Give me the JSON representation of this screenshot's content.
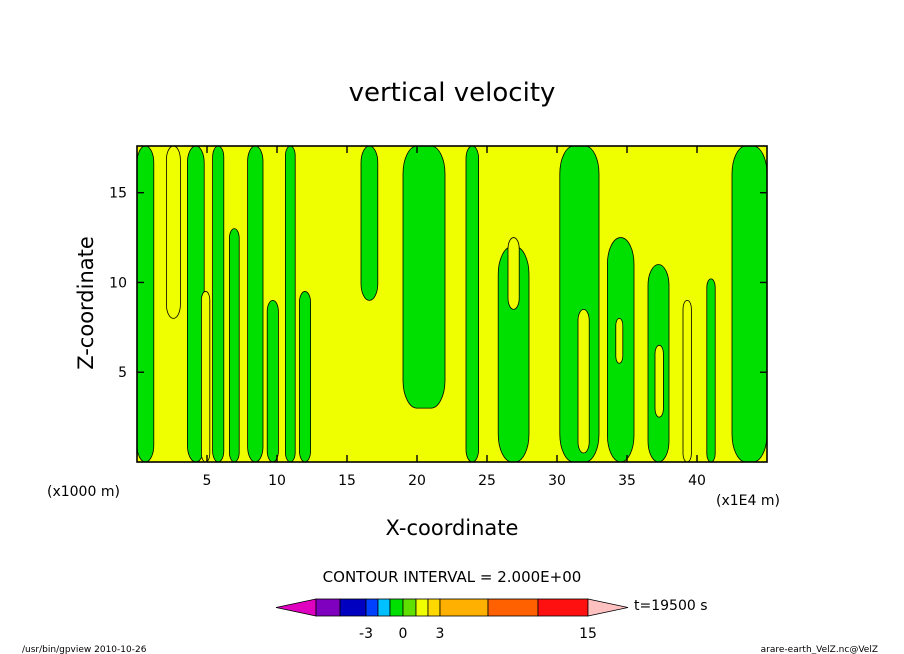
{
  "chart_data": {
    "type": "heatmap",
    "title": "vertical velocity",
    "xlabel": "X-coordinate",
    "ylabel": "Z-coordinate",
    "x_units_left": "(x1000 m)",
    "x_units_right": "(x1E4 m)",
    "xlim": [
      0,
      45
    ],
    "ylim": [
      0,
      17.6
    ],
    "x_ticks": [
      5,
      10,
      15,
      20,
      25,
      30,
      35,
      40
    ],
    "y_ticks": [
      5,
      10,
      15
    ],
    "note": "CONTOUR INTERVAL = 2.000E+00",
    "time_label": "t=19500 s",
    "colors": {
      "positive": "#f0ff00",
      "negative": "#00e000",
      "contour": "#000000"
    },
    "colorbar": {
      "boundaries": [
        -9,
        -7,
        -5,
        -3,
        -2,
        -1,
        0,
        1,
        2,
        3,
        5,
        10,
        15
      ],
      "colors": [
        "#e000c0",
        "#8000c0",
        "#0000c0",
        "#0040ff",
        "#00c0ff",
        "#00e000",
        "#60e000",
        "#f0ff00",
        "#ffd800",
        "#ffb000",
        "#ff6000",
        "#ff1010",
        "#ff7070",
        "#ffc0c0"
      ],
      "tick_labels": [
        "-3",
        "0",
        "3",
        "15"
      ]
    },
    "negative_regions_xrange": [
      [
        0.0,
        1.2,
        0.0,
        17.6
      ],
      [
        3.6,
        4.8,
        0.0,
        17.6
      ],
      [
        5.4,
        6.2,
        0.0,
        17.6
      ],
      [
        6.6,
        7.3,
        0.0,
        13.0
      ],
      [
        7.9,
        9.0,
        0.0,
        17.6
      ],
      [
        9.3,
        10.1,
        0.0,
        9.0
      ],
      [
        10.6,
        11.3,
        0.0,
        17.6
      ],
      [
        11.6,
        12.4,
        0.0,
        9.5
      ],
      [
        16.0,
        17.2,
        9.0,
        17.6
      ],
      [
        19.0,
        22.0,
        3.0,
        17.6
      ],
      [
        23.5,
        24.4,
        0.0,
        17.6
      ],
      [
        25.8,
        28.0,
        0.0,
        12.0
      ],
      [
        30.2,
        33.0,
        0.0,
        17.6
      ],
      [
        33.6,
        35.5,
        0.0,
        12.5
      ],
      [
        36.5,
        38.0,
        0.0,
        11.0
      ],
      [
        40.7,
        41.3,
        0.0,
        10.2
      ],
      [
        42.5,
        45.0,
        0.0,
        17.6
      ]
    ],
    "positive_islands": [
      [
        2.1,
        3.1,
        8.0,
        17.6
      ],
      [
        4.6,
        5.2,
        0.0,
        9.5
      ],
      [
        26.5,
        27.3,
        8.5,
        12.5
      ],
      [
        31.5,
        32.3,
        0.5,
        8.5
      ],
      [
        34.2,
        34.7,
        5.5,
        8.0
      ],
      [
        37.0,
        37.6,
        2.5,
        6.5
      ],
      [
        39.0,
        39.6,
        0.0,
        9.0
      ]
    ]
  },
  "footer": {
    "left": "/usr/bin/gpview   2010-10-26",
    "right": "arare-earth_VelZ.nc@VelZ"
  }
}
